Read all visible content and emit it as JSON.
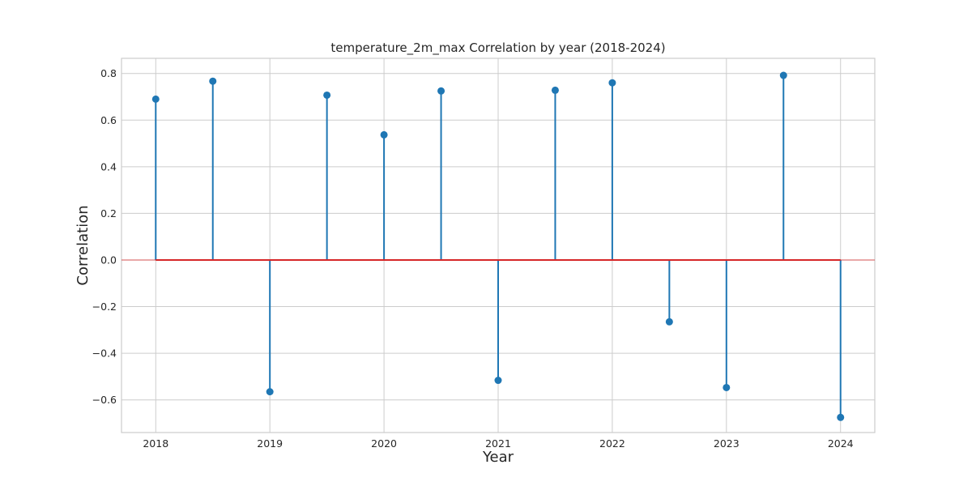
{
  "chart_data": {
    "type": "stem",
    "title": "temperature_2m_max Correlation by year (2018-2024)",
    "xlabel": "Year",
    "ylabel": "Correlation",
    "xlim": [
      2017.7,
      2024.3
    ],
    "ylim": [
      -0.74,
      0.865
    ],
    "x_ticks": [
      2018,
      2019,
      2020,
      2021,
      2022,
      2023,
      2024
    ],
    "y_ticks": [
      -0.6,
      -0.4,
      -0.2,
      0.0,
      0.2,
      0.4,
      0.6,
      0.8
    ],
    "y_tick_labels": [
      "−0.6",
      "−0.4",
      "−0.2",
      "0.0",
      "0.2",
      "0.4",
      "0.6",
      "0.8"
    ],
    "grid": true,
    "baseline": 0.0,
    "colors": {
      "stem": "#1f77b4",
      "baseline": "#d62728"
    },
    "points": [
      {
        "x": 2018.0,
        "y": 0.69
      },
      {
        "x": 2018.5,
        "y": 0.767
      },
      {
        "x": 2019.0,
        "y": -0.565
      },
      {
        "x": 2019.5,
        "y": 0.707
      },
      {
        "x": 2020.0,
        "y": 0.537
      },
      {
        "x": 2020.5,
        "y": 0.725
      },
      {
        "x": 2021.0,
        "y": -0.516
      },
      {
        "x": 2021.5,
        "y": 0.728
      },
      {
        "x": 2022.0,
        "y": 0.76
      },
      {
        "x": 2022.5,
        "y": -0.265
      },
      {
        "x": 2023.0,
        "y": -0.547
      },
      {
        "x": 2023.5,
        "y": 0.792
      },
      {
        "x": 2024.0,
        "y": -0.675
      }
    ]
  }
}
